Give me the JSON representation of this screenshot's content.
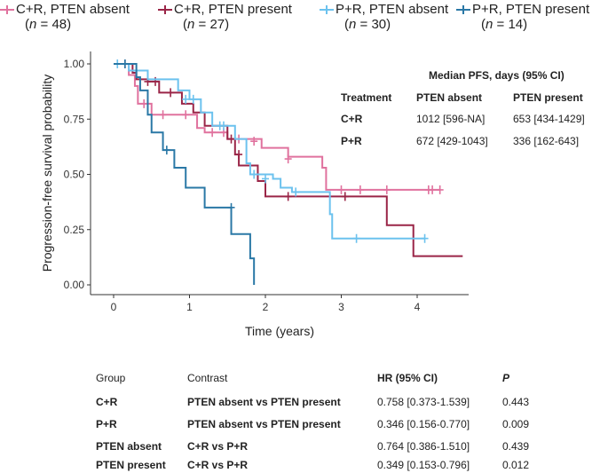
{
  "legend": [
    {
      "label": "C+R, PTEN absent",
      "n_prefix": "(",
      "n_var": "n",
      "n_rest": " = 48)",
      "color": "#e0729e"
    },
    {
      "label": "C+R, PTEN present",
      "n_prefix": "(",
      "n_var": "n",
      "n_rest": " = 27)",
      "color": "#9a2547"
    },
    {
      "label": "P+R, PTEN absent",
      "n_prefix": "(",
      "n_var": "n",
      "n_rest": " = 30)",
      "color": "#6cc2ee"
    },
    {
      "label": "P+R, PTEN present",
      "n_prefix": "(",
      "n_var": "n",
      "n_rest": " = 14)",
      "color": "#2a78a6"
    }
  ],
  "median_table": {
    "title": "Median PFS, days (95% CI)",
    "headers": [
      "Treatment",
      "PTEN absent",
      "PTEN present"
    ],
    "rows": [
      [
        "C+R",
        "1012 [596-NA]",
        "653 [434-1429]"
      ],
      [
        "P+R",
        "672 [429-1043]",
        "336 [162-643]"
      ]
    ]
  },
  "hr_table": {
    "headers": [
      "Group",
      "Contrast",
      "HR (95% CI)",
      "P"
    ],
    "rows": [
      [
        "C+R",
        "PTEN absent vs PTEN present",
        "0.758 [0.373-1.539]",
        "0.443"
      ],
      [
        "P+R",
        "PTEN absent vs PTEN present",
        "0.346 [0.156-0.770]",
        "0.009"
      ],
      [
        "PTEN absent",
        "C+R vs P+R",
        "0.764 [0.386-1.510]",
        "0.439"
      ],
      [
        "PTEN present",
        "C+R vs P+R",
        "0.349 [0.153-0.796]",
        "0.012"
      ]
    ]
  },
  "chart_data": {
    "type": "line",
    "subtype": "kaplan-meier step",
    "xlabel": "Time (years)",
    "ylabel": "Progression-free survival probability",
    "xlim": [
      -0.1,
      4.6
    ],
    "ylim": [
      0,
      1
    ],
    "xticks": [
      0,
      1,
      2,
      3,
      4
    ],
    "yticks": [
      0,
      0.25,
      0.5,
      0.75,
      1
    ],
    "ytick_labels": [
      "0.00",
      "0.25",
      "0.50",
      "0.75",
      "1.00"
    ],
    "xtick_labels": [
      "0",
      "1",
      "2",
      "3",
      "4"
    ],
    "series": [
      {
        "name": "C+R, PTEN absent",
        "color": "#e0729e",
        "steps": [
          [
            0,
            1
          ],
          [
            0.2,
            0.95
          ],
          [
            0.28,
            0.9
          ],
          [
            0.32,
            0.82
          ],
          [
            0.5,
            0.77
          ],
          [
            1.1,
            0.71
          ],
          [
            1.2,
            0.69
          ],
          [
            1.5,
            0.66
          ],
          [
            1.95,
            0.62
          ],
          [
            2.3,
            0.58
          ],
          [
            2.75,
            0.53
          ],
          [
            2.8,
            0.43
          ],
          [
            4.3,
            0.43
          ]
        ],
        "censors": [
          [
            0.4,
            0.82
          ],
          [
            0.65,
            0.77
          ],
          [
            0.95,
            0.77
          ],
          [
            1.3,
            0.69
          ],
          [
            1.45,
            0.69
          ],
          [
            1.65,
            0.66
          ],
          [
            1.85,
            0.65
          ],
          [
            2.3,
            0.57
          ],
          [
            3.0,
            0.43
          ],
          [
            3.25,
            0.43
          ],
          [
            3.6,
            0.43
          ],
          [
            4.15,
            0.43
          ],
          [
            4.2,
            0.43
          ],
          [
            4.3,
            0.43
          ]
        ]
      },
      {
        "name": "C+R, PTEN present",
        "color": "#9a2547",
        "steps": [
          [
            0,
            1
          ],
          [
            0.25,
            0.96
          ],
          [
            0.3,
            0.93
          ],
          [
            0.45,
            0.92
          ],
          [
            0.6,
            0.87
          ],
          [
            0.9,
            0.82
          ],
          [
            1.05,
            0.78
          ],
          [
            1.2,
            0.72
          ],
          [
            1.5,
            0.66
          ],
          [
            1.6,
            0.59
          ],
          [
            1.65,
            0.54
          ],
          [
            1.9,
            0.47
          ],
          [
            2.0,
            0.4
          ],
          [
            3.6,
            0.27
          ],
          [
            3.95,
            0.13
          ],
          [
            4.6,
            0.13
          ]
        ],
        "censors": [
          [
            0.15,
            1
          ],
          [
            0.45,
            0.92
          ],
          [
            0.55,
            0.92
          ],
          [
            0.75,
            0.87
          ],
          [
            1.55,
            0.66
          ],
          [
            1.65,
            0.59
          ],
          [
            2.3,
            0.4
          ],
          [
            3.05,
            0.4
          ]
        ]
      },
      {
        "name": "P+R, PTEN absent",
        "color": "#6cc2ee",
        "steps": [
          [
            0,
            1
          ],
          [
            0.2,
            0.97
          ],
          [
            0.45,
            0.93
          ],
          [
            0.85,
            0.88
          ],
          [
            1.0,
            0.84
          ],
          [
            1.15,
            0.78
          ],
          [
            1.3,
            0.72
          ],
          [
            1.6,
            0.66
          ],
          [
            1.75,
            0.55
          ],
          [
            1.8,
            0.5
          ],
          [
            2.1,
            0.48
          ],
          [
            2.2,
            0.44
          ],
          [
            2.35,
            0.42
          ],
          [
            2.85,
            0.32
          ],
          [
            2.88,
            0.21
          ],
          [
            4.1,
            0.21
          ]
        ],
        "censors": [
          [
            0.05,
            1
          ],
          [
            0.3,
            0.97
          ],
          [
            0.95,
            0.84
          ],
          [
            1.05,
            0.84
          ],
          [
            1.4,
            0.72
          ],
          [
            1.45,
            0.72
          ],
          [
            1.85,
            0.5
          ],
          [
            2.0,
            0.48
          ],
          [
            2.4,
            0.42
          ],
          [
            3.2,
            0.21
          ],
          [
            4.1,
            0.21
          ]
        ]
      },
      {
        "name": "P+R, PTEN present",
        "color": "#2a78a6",
        "steps": [
          [
            0,
            1
          ],
          [
            0.3,
            0.94
          ],
          [
            0.35,
            0.88
          ],
          [
            0.45,
            0.77
          ],
          [
            0.5,
            0.69
          ],
          [
            0.65,
            0.61
          ],
          [
            0.8,
            0.53
          ],
          [
            0.95,
            0.44
          ],
          [
            1.2,
            0.35
          ],
          [
            1.55,
            0.23
          ],
          [
            1.8,
            0.12
          ],
          [
            1.85,
            0
          ],
          [
            1.85,
            0
          ]
        ],
        "censors": [
          [
            0.15,
            1
          ],
          [
            0.7,
            0.61
          ],
          [
            1.55,
            0.35
          ]
        ]
      }
    ]
  }
}
